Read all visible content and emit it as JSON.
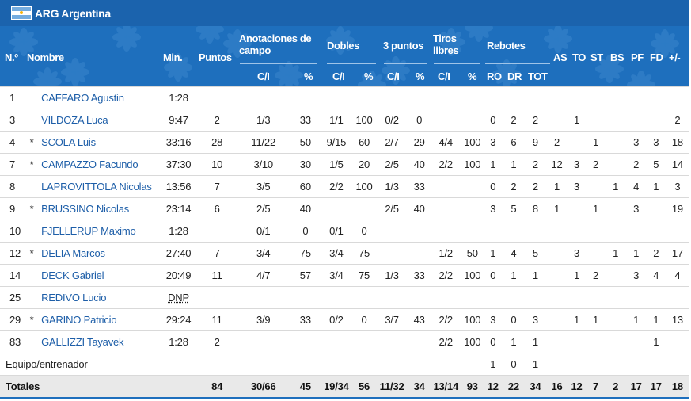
{
  "team": {
    "title": "ARG Argentina"
  },
  "headers": {
    "num": "N.º",
    "name": "Nombre",
    "min": "Min.",
    "pts": "Puntos",
    "fg_group": "Anotaciones de campo",
    "two_group": "Dobles",
    "three_group": "3 puntos",
    "ft_group": "Tiros libres",
    "reb_group": "Rebotes",
    "made_att": "C/I",
    "pct": "%",
    "ro": "RO",
    "dr": "DR",
    "tot": "TOT",
    "as": "AS",
    "to": "TO",
    "st": "ST",
    "bs": "BS",
    "pf": "PF",
    "fd": "FD",
    "pm": "+/-"
  },
  "players": [
    {
      "num": "1",
      "starter": "",
      "name": "CAFFARO Agustin",
      "min": "1:28",
      "pts": "",
      "fg": "",
      "fg_pct": "",
      "two": "",
      "two_pct": "",
      "three": "",
      "three_pct": "",
      "ft": "",
      "ft_pct": "",
      "ro": "",
      "dr": "",
      "tot": "",
      "as": "",
      "to": "",
      "st": "",
      "bs": "",
      "pf": "",
      "fd": "",
      "pm": ""
    },
    {
      "num": "3",
      "starter": "",
      "name": "VILDOZA Luca",
      "min": "9:47",
      "pts": "2",
      "fg": "1/3",
      "fg_pct": "33",
      "two": "1/1",
      "two_pct": "100",
      "three": "0/2",
      "three_pct": "0",
      "ft": "",
      "ft_pct": "",
      "ro": "0",
      "dr": "2",
      "tot": "2",
      "as": "",
      "to": "1",
      "st": "",
      "bs": "",
      "pf": "",
      "fd": "",
      "pm": "2"
    },
    {
      "num": "4",
      "starter": "*",
      "name": "SCOLA Luis",
      "min": "33:16",
      "pts": "28",
      "fg": "11/22",
      "fg_pct": "50",
      "two": "9/15",
      "two_pct": "60",
      "three": "2/7",
      "three_pct": "29",
      "ft": "4/4",
      "ft_pct": "100",
      "ro": "3",
      "dr": "6",
      "tot": "9",
      "as": "2",
      "to": "",
      "st": "1",
      "bs": "",
      "pf": "3",
      "fd": "3",
      "pm": "18"
    },
    {
      "num": "7",
      "starter": "*",
      "name": "CAMPAZZO Facundo",
      "min": "37:30",
      "pts": "10",
      "fg": "3/10",
      "fg_pct": "30",
      "two": "1/5",
      "two_pct": "20",
      "three": "2/5",
      "three_pct": "40",
      "ft": "2/2",
      "ft_pct": "100",
      "ro": "1",
      "dr": "1",
      "tot": "2",
      "as": "12",
      "to": "3",
      "st": "2",
      "bs": "",
      "pf": "2",
      "fd": "5",
      "pm": "14"
    },
    {
      "num": "8",
      "starter": "",
      "name": "LAPROVITTOLA Nicolas",
      "min": "13:56",
      "pts": "7",
      "fg": "3/5",
      "fg_pct": "60",
      "two": "2/2",
      "two_pct": "100",
      "three": "1/3",
      "three_pct": "33",
      "ft": "",
      "ft_pct": "",
      "ro": "0",
      "dr": "2",
      "tot": "2",
      "as": "1",
      "to": "3",
      "st": "",
      "bs": "1",
      "pf": "4",
      "fd": "1",
      "pm": "3"
    },
    {
      "num": "9",
      "starter": "*",
      "name": "BRUSSINO Nicolas",
      "min": "23:14",
      "pts": "6",
      "fg": "2/5",
      "fg_pct": "40",
      "two": "",
      "two_pct": "",
      "three": "2/5",
      "three_pct": "40",
      "ft": "",
      "ft_pct": "",
      "ro": "3",
      "dr": "5",
      "tot": "8",
      "as": "1",
      "to": "",
      "st": "1",
      "bs": "",
      "pf": "3",
      "fd": "",
      "pm": "19"
    },
    {
      "num": "10",
      "starter": "",
      "name": "FJELLERUP Maximo",
      "min": "1:28",
      "pts": "",
      "fg": "0/1",
      "fg_pct": "0",
      "two": "0/1",
      "two_pct": "0",
      "three": "",
      "three_pct": "",
      "ft": "",
      "ft_pct": "",
      "ro": "",
      "dr": "",
      "tot": "",
      "as": "",
      "to": "",
      "st": "",
      "bs": "",
      "pf": "",
      "fd": "",
      "pm": ""
    },
    {
      "num": "12",
      "starter": "*",
      "name": "DELIA Marcos",
      "min": "27:40",
      "pts": "7",
      "fg": "3/4",
      "fg_pct": "75",
      "two": "3/4",
      "two_pct": "75",
      "three": "",
      "three_pct": "",
      "ft": "1/2",
      "ft_pct": "50",
      "ro": "1",
      "dr": "4",
      "tot": "5",
      "as": "",
      "to": "3",
      "st": "",
      "bs": "1",
      "pf": "1",
      "fd": "2",
      "pm": "17"
    },
    {
      "num": "14",
      "starter": "",
      "name": "DECK Gabriel",
      "min": "20:49",
      "pts": "11",
      "fg": "4/7",
      "fg_pct": "57",
      "two": "3/4",
      "two_pct": "75",
      "three": "1/3",
      "three_pct": "33",
      "ft": "2/2",
      "ft_pct": "100",
      "ro": "0",
      "dr": "1",
      "tot": "1",
      "as": "",
      "to": "1",
      "st": "2",
      "bs": "",
      "pf": "3",
      "fd": "4",
      "pm": "4"
    },
    {
      "num": "25",
      "starter": "",
      "name": "REDIVO Lucio",
      "min": "DNP",
      "pts": "",
      "fg": "",
      "fg_pct": "",
      "two": "",
      "two_pct": "",
      "three": "",
      "three_pct": "",
      "ft": "",
      "ft_pct": "",
      "ro": "",
      "dr": "",
      "tot": "",
      "as": "",
      "to": "",
      "st": "",
      "bs": "",
      "pf": "",
      "fd": "",
      "pm": ""
    },
    {
      "num": "29",
      "starter": "*",
      "name": "GARINO Patricio",
      "min": "29:24",
      "pts": "11",
      "fg": "3/9",
      "fg_pct": "33",
      "two": "0/2",
      "two_pct": "0",
      "three": "3/7",
      "three_pct": "43",
      "ft": "2/2",
      "ft_pct": "100",
      "ro": "3",
      "dr": "0",
      "tot": "3",
      "as": "",
      "to": "1",
      "st": "1",
      "bs": "",
      "pf": "1",
      "fd": "1",
      "pm": "13"
    },
    {
      "num": "83",
      "starter": "",
      "name": "GALLIZZI Tayavek",
      "min": "1:28",
      "pts": "2",
      "fg": "",
      "fg_pct": "",
      "two": "",
      "two_pct": "",
      "three": "",
      "three_pct": "",
      "ft": "2/2",
      "ft_pct": "100",
      "ro": "0",
      "dr": "1",
      "tot": "1",
      "as": "",
      "to": "",
      "st": "",
      "bs": "",
      "pf": "",
      "fd": "1",
      "pm": ""
    }
  ],
  "team_row": {
    "label": "Equipo/entrenador",
    "ro": "1",
    "dr": "0",
    "tot": "1"
  },
  "totals": {
    "label": "Totales",
    "pts": "84",
    "fg": "30/66",
    "fg_pct": "45",
    "two": "19/34",
    "two_pct": "56",
    "three": "11/32",
    "three_pct": "34",
    "ft": "13/14",
    "ft_pct": "93",
    "ro": "12",
    "dr": "22",
    "tot": "34",
    "as": "16",
    "to": "12",
    "st": "7",
    "bs": "2",
    "pf": "17",
    "fd": "17",
    "pm": "18"
  },
  "colors": {
    "header_bg": "#1e6fbd",
    "title_bg": "#1b63ad",
    "name_link": "#1d5ea8",
    "totals_bg": "#e9e9e9"
  }
}
